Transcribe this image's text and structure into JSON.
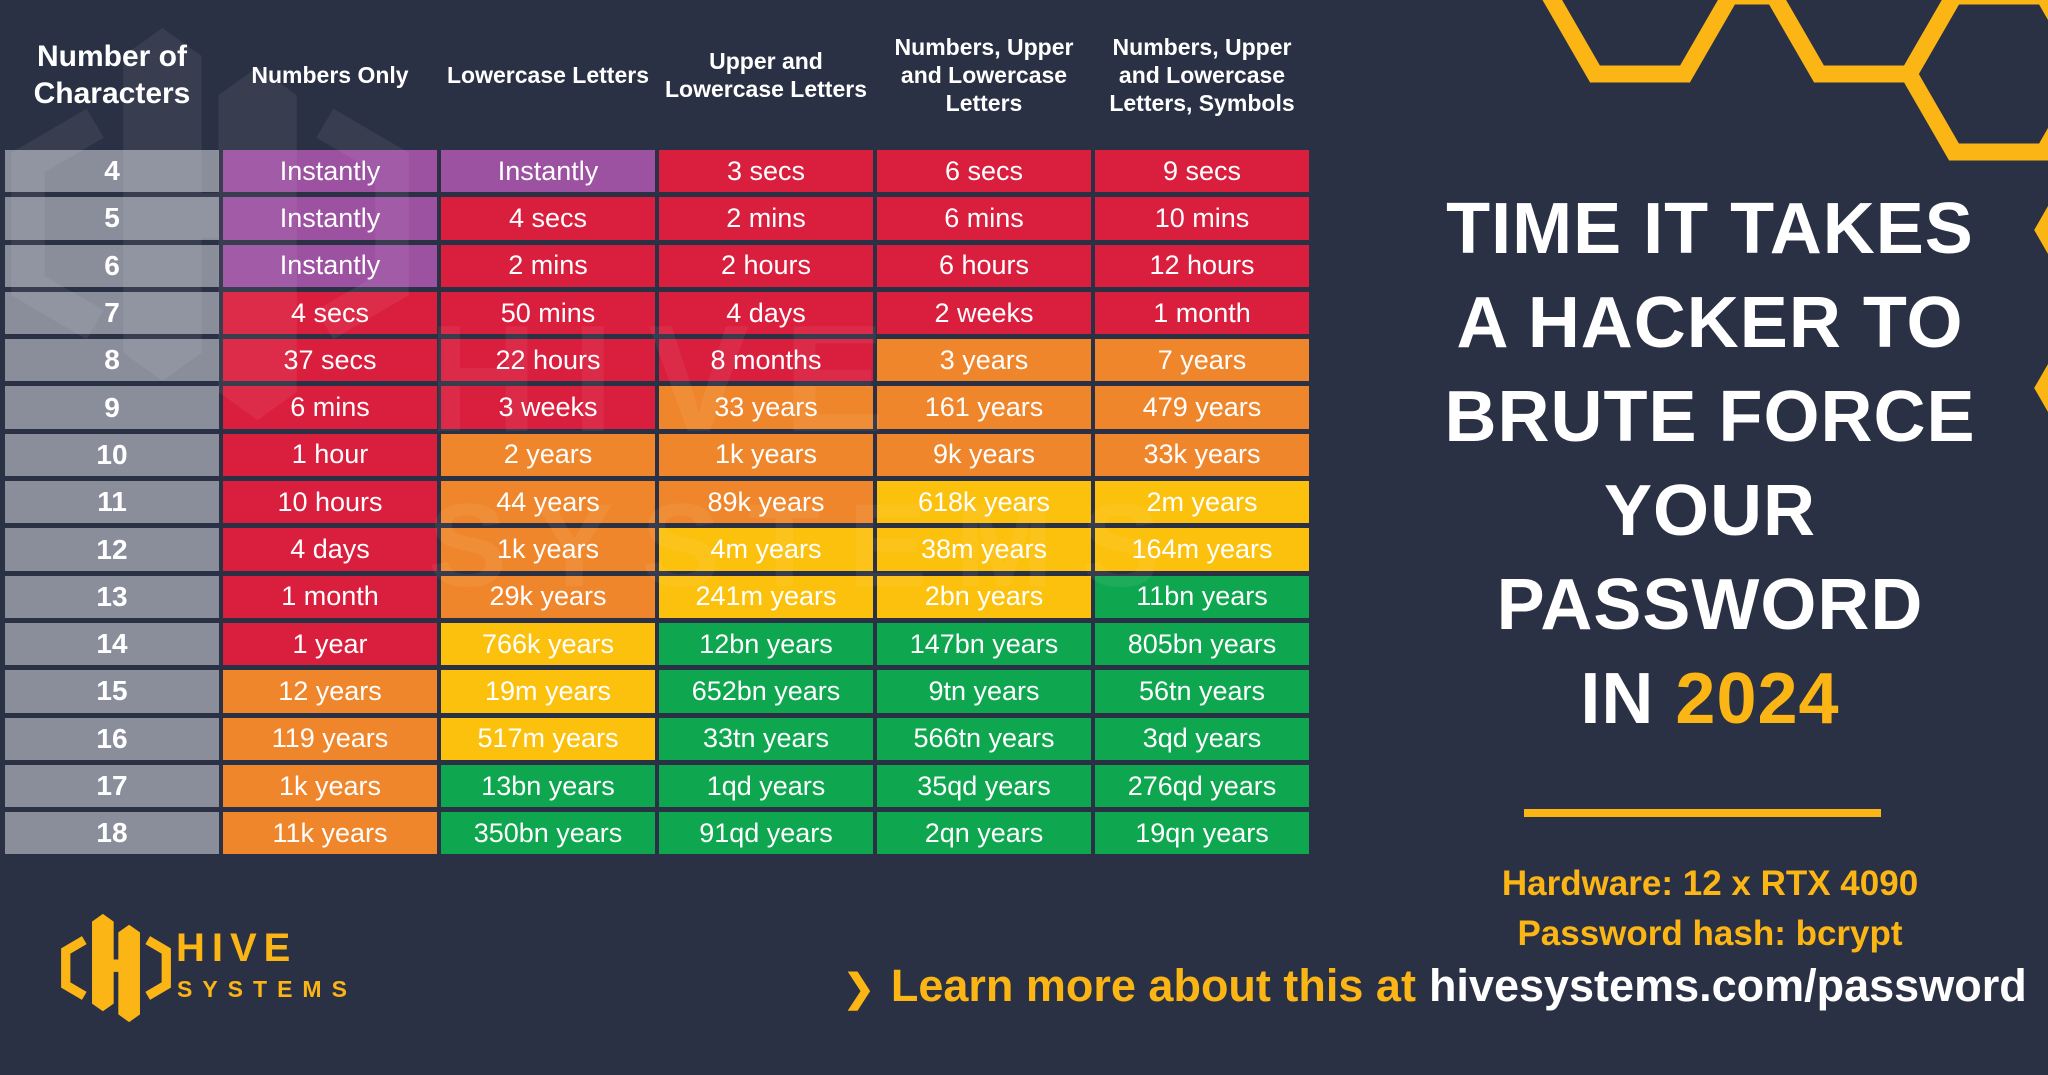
{
  "palette": {
    "background": "#2B3144",
    "accent": "#FBB515",
    "gray": "#8A8E9B",
    "purple": "#9C51A1",
    "red": "#DA1E3D",
    "orange": "#F0862B",
    "yellow": "#FCC10D",
    "green": "#0EA750",
    "text": "#FFFFFF"
  },
  "chart_data": {
    "type": "table",
    "title": "Time it takes a hacker to brute force your password in 2024",
    "row_header": "Number of Characters",
    "columns": [
      "Numbers Only",
      "Lowercase Letters",
      "Upper and Lowercase Letters",
      "Numbers, Upper and Lowercase Letters",
      "Numbers, Upper and Lowercase Letters, Symbols"
    ],
    "rows": [
      {
        "n": "4",
        "v": [
          "Instantly",
          "Instantly",
          "3 secs",
          "6 secs",
          "9 secs"
        ],
        "c": [
          "purple",
          "purple",
          "red",
          "red",
          "red"
        ]
      },
      {
        "n": "5",
        "v": [
          "Instantly",
          "4 secs",
          "2 mins",
          "6 mins",
          "10 mins"
        ],
        "c": [
          "purple",
          "red",
          "red",
          "red",
          "red"
        ]
      },
      {
        "n": "6",
        "v": [
          "Instantly",
          "2 mins",
          "2 hours",
          "6 hours",
          "12 hours"
        ],
        "c": [
          "purple",
          "red",
          "red",
          "red",
          "red"
        ]
      },
      {
        "n": "7",
        "v": [
          "4 secs",
          "50 mins",
          "4 days",
          "2 weeks",
          "1 month"
        ],
        "c": [
          "red",
          "red",
          "red",
          "red",
          "red"
        ]
      },
      {
        "n": "8",
        "v": [
          "37 secs",
          "22 hours",
          "8 months",
          "3 years",
          "7 years"
        ],
        "c": [
          "red",
          "red",
          "red",
          "orange",
          "orange"
        ]
      },
      {
        "n": "9",
        "v": [
          "6 mins",
          "3 weeks",
          "33 years",
          "161 years",
          "479 years"
        ],
        "c": [
          "red",
          "red",
          "orange",
          "orange",
          "orange"
        ]
      },
      {
        "n": "10",
        "v": [
          "1 hour",
          "2 years",
          "1k years",
          "9k years",
          "33k years"
        ],
        "c": [
          "red",
          "orange",
          "orange",
          "orange",
          "orange"
        ]
      },
      {
        "n": "11",
        "v": [
          "10 hours",
          "44 years",
          "89k years",
          "618k years",
          "2m years"
        ],
        "c": [
          "red",
          "orange",
          "orange",
          "yellow",
          "yellow"
        ]
      },
      {
        "n": "12",
        "v": [
          "4 days",
          "1k years",
          "4m years",
          "38m years",
          "164m years"
        ],
        "c": [
          "red",
          "orange",
          "yellow",
          "yellow",
          "yellow"
        ]
      },
      {
        "n": "13",
        "v": [
          "1 month",
          "29k years",
          "241m years",
          "2bn years",
          "11bn years"
        ],
        "c": [
          "red",
          "orange",
          "yellow",
          "yellow",
          "green"
        ]
      },
      {
        "n": "14",
        "v": [
          "1 year",
          "766k years",
          "12bn years",
          "147bn years",
          "805bn years"
        ],
        "c": [
          "red",
          "yellow",
          "green",
          "green",
          "green"
        ]
      },
      {
        "n": "15",
        "v": [
          "12 years",
          "19m years",
          "652bn years",
          "9tn years",
          "56tn years"
        ],
        "c": [
          "orange",
          "yellow",
          "green",
          "green",
          "green"
        ]
      },
      {
        "n": "16",
        "v": [
          "119 years",
          "517m years",
          "33tn years",
          "566tn years",
          "3qd years"
        ],
        "c": [
          "orange",
          "yellow",
          "green",
          "green",
          "green"
        ]
      },
      {
        "n": "17",
        "v": [
          "1k years",
          "13bn years",
          "1qd years",
          "35qd years",
          "276qd years"
        ],
        "c": [
          "orange",
          "green",
          "green",
          "green",
          "green"
        ]
      },
      {
        "n": "18",
        "v": [
          "11k years",
          "350bn years",
          "91qd years",
          "2qn years",
          "19qn years"
        ],
        "c": [
          "orange",
          "green",
          "green",
          "green",
          "green"
        ]
      }
    ]
  },
  "side_panel": {
    "title_lines": [
      "TIME IT TAKES",
      "A HACKER TO",
      "BRUTE FORCE",
      "YOUR",
      "PASSWORD"
    ],
    "title_prefix_last_line": "IN",
    "title_year": "2024",
    "hardware_line": "Hardware: 12 x RTX 4090",
    "hash_line": "Password hash: bcrypt"
  },
  "footer": {
    "chevron": "❯",
    "tagline_prefix": "Learn more about this at",
    "tagline_link": "hivesystems.com/password"
  },
  "logo": {
    "word1": "HIVE",
    "word2": "SYSTEMS"
  },
  "watermark": {
    "word1": "HIVE",
    "word2": "SYSTEMS"
  }
}
